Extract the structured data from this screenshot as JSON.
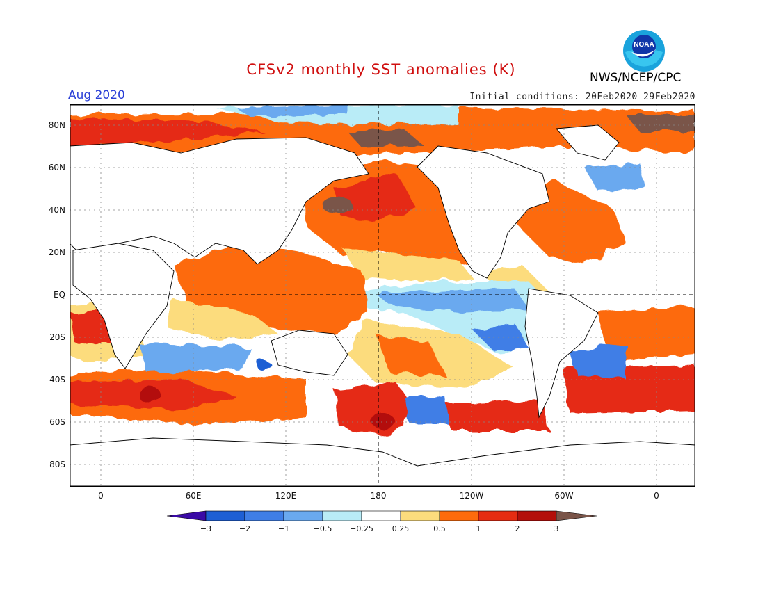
{
  "header": {
    "title": "CFSv2 monthly SST anomalies (K)",
    "month": "Aug 2020",
    "initial_conditions": "Initial conditions: 20Feb2020–29Feb2020",
    "organization": "NWS/NCEP/CPC",
    "logo_text": "NOAA"
  },
  "axes": {
    "y_labels": [
      "80N",
      "60N",
      "40N",
      "20N",
      "EQ",
      "20S",
      "40S",
      "60S",
      "80S"
    ],
    "x_labels": [
      "0",
      "60E",
      "120E",
      "180",
      "120W",
      "60W",
      "0"
    ]
  },
  "legend": {
    "ticks": [
      "−3",
      "−2",
      "−1",
      "−0.5",
      "−0.25",
      "0.25",
      "0.5",
      "1",
      "2",
      "3"
    ],
    "colors": [
      "#3a0aa6",
      "#1e5fd4",
      "#3f7ee6",
      "#6aa9ef",
      "#b9ecf7",
      "#ffffff",
      "#fcdc7d",
      "#fd6b0c",
      "#e52c12",
      "#b30f0a",
      "#7a5448"
    ]
  },
  "colors": {
    "ocean_neutral": "#ffffff",
    "warm_light": "#fcdc7d",
    "warm_orange": "#fd6b0c",
    "warm_red": "#e52c12",
    "warm_dark": "#b30f0a",
    "extreme": "#7a5448",
    "cool_light": "#b9ecf7",
    "cool_mid": "#6aa9ef",
    "cool_blue": "#3f7ee6",
    "cool_dark": "#1e5fd4"
  }
}
